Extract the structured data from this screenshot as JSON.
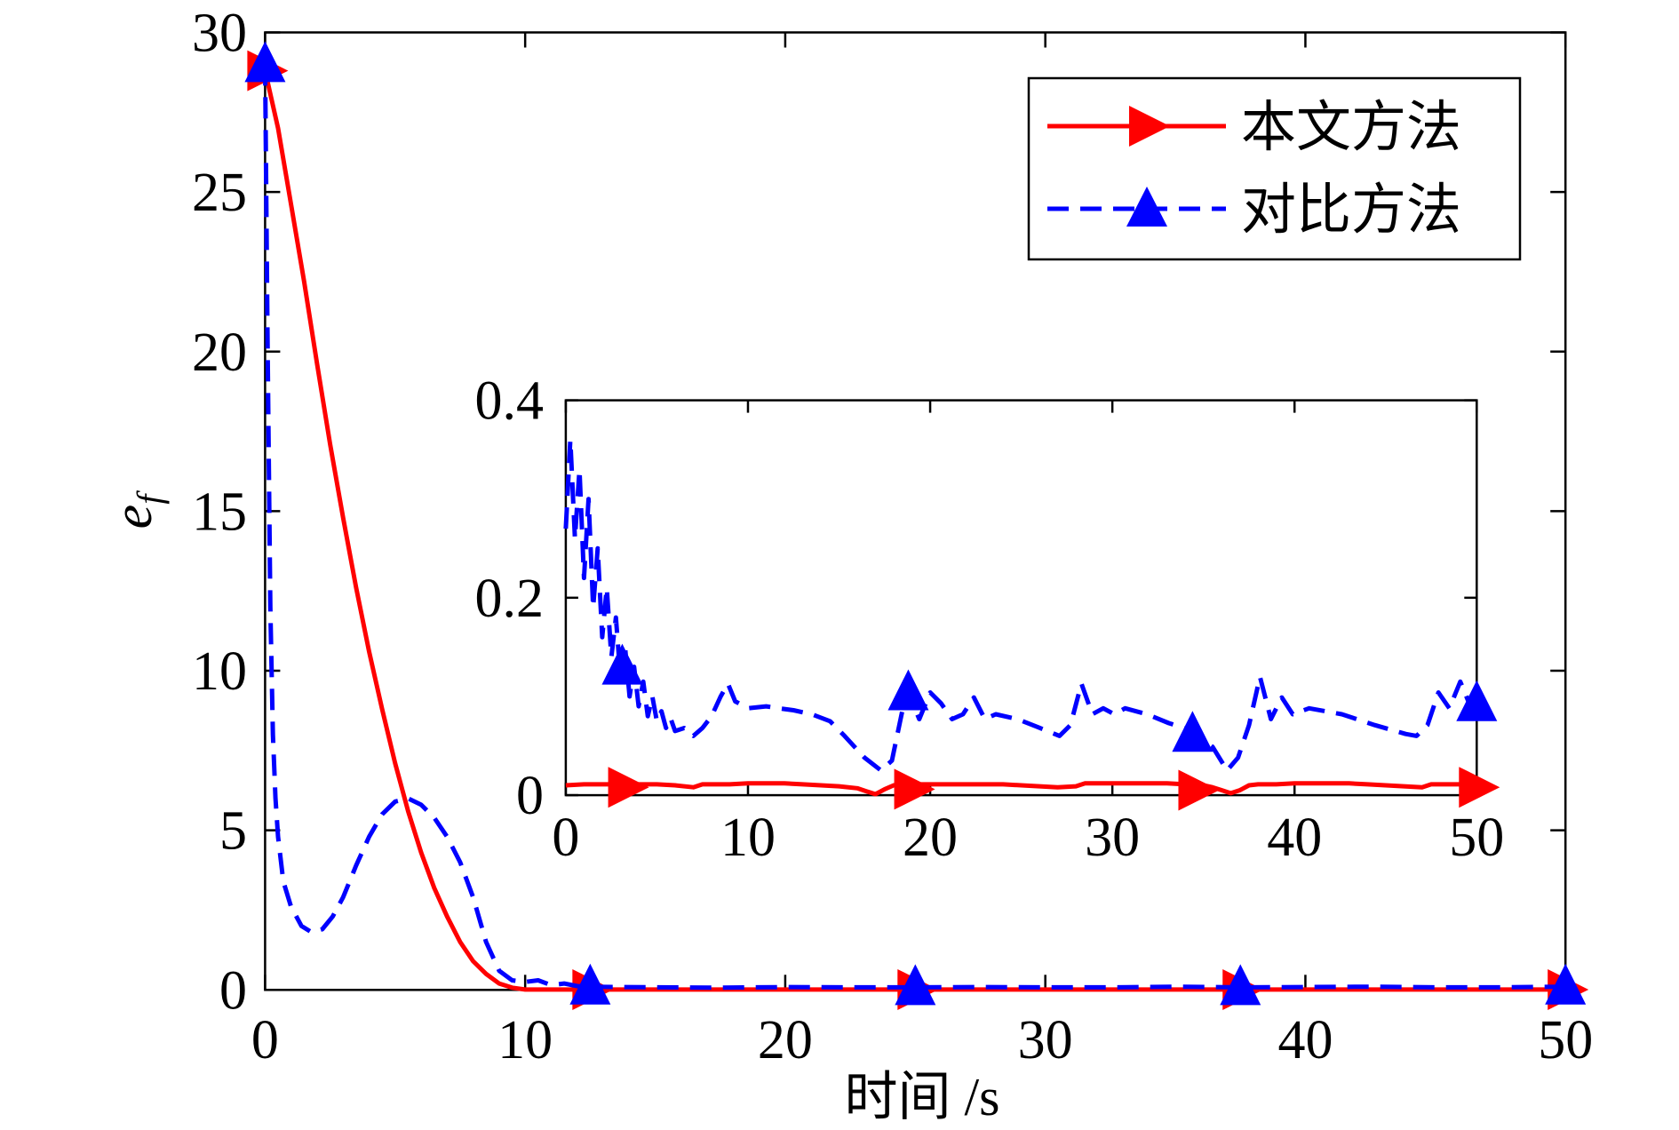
{
  "chart_data": [
    {
      "type": "line",
      "xlabel": "时间 /s",
      "ylabel": "e",
      "ylabel_subscript": "f",
      "xlim": [
        0,
        50
      ],
      "ylim": [
        0,
        30
      ],
      "xticks": [
        0,
        10,
        20,
        30,
        40,
        50
      ],
      "xtick_labels": [
        "0",
        "10",
        "20",
        "30",
        "40",
        "50"
      ],
      "yticks": [
        0,
        5,
        10,
        15,
        20,
        25,
        30
      ],
      "ytick_labels": [
        "0",
        "5",
        "10",
        "15",
        "20",
        "25",
        "30"
      ],
      "grid": false,
      "legend": {
        "position": "top-right"
      },
      "series": [
        {
          "name": "本文方法",
          "color": "#ff0000",
          "line_style": "solid",
          "marker": "triangle-right",
          "x": [
            0,
            0.5,
            1,
            1.5,
            2,
            2.5,
            3,
            3.5,
            4,
            4.5,
            5,
            5.5,
            6,
            6.5,
            7,
            7.5,
            8,
            8.5,
            9,
            9.5,
            10,
            12.5,
            15,
            20,
            25,
            30,
            35,
            40,
            45,
            50
          ],
          "y": [
            28.8,
            27.0,
            24.6,
            22.2,
            19.6,
            17.1,
            14.8,
            12.6,
            10.6,
            8.8,
            7.1,
            5.6,
            4.3,
            3.2,
            2.3,
            1.5,
            0.9,
            0.5,
            0.2,
            0.07,
            0.01,
            0.01,
            0.01,
            0.01,
            0.01,
            0.01,
            0.01,
            0.01,
            0.01,
            0.01
          ],
          "marker_x": [
            0,
            12.5,
            25,
            37.5,
            50
          ],
          "marker_y": [
            28.8,
            0.01,
            0.01,
            0.01,
            0.01
          ]
        },
        {
          "name": "对比方法",
          "color": "#0000ff",
          "line_style": "dashed",
          "marker": "triangle-up",
          "x": [
            0,
            0.1,
            0.2,
            0.3,
            0.4,
            0.5,
            0.7,
            1.0,
            1.4,
            1.8,
            2.2,
            2.6,
            3.0,
            3.5,
            4.0,
            4.5,
            5.0,
            5.5,
            6.0,
            6.5,
            7.0,
            7.5,
            8.0,
            8.5,
            9.0,
            9.5,
            10.0,
            10.5,
            11.0,
            11.5,
            12.0,
            12.5,
            15,
            17.5,
            20,
            22.5,
            25,
            27.5,
            30,
            32.5,
            35,
            37.5,
            40,
            42.5,
            45,
            47.5,
            50
          ],
          "y": [
            29.0,
            20.0,
            12.0,
            8.0,
            6.0,
            4.8,
            3.4,
            2.6,
            2.0,
            1.8,
            1.9,
            2.3,
            2.9,
            3.9,
            4.8,
            5.5,
            5.9,
            6.0,
            5.8,
            5.4,
            4.8,
            4.0,
            2.9,
            1.5,
            0.6,
            0.3,
            0.25,
            0.3,
            0.15,
            0.2,
            0.12,
            0.1,
            0.08,
            0.07,
            0.09,
            0.08,
            0.08,
            0.09,
            0.08,
            0.08,
            0.1,
            0.08,
            0.09,
            0.1,
            0.08,
            0.08,
            0.1
          ],
          "marker_x": [
            0,
            12.5,
            25,
            37.5,
            50
          ],
          "marker_y": [
            29.0,
            0.1,
            0.08,
            0.08,
            0.1
          ]
        }
      ]
    },
    {
      "type": "line",
      "xlim": [
        0,
        50
      ],
      "ylim": [
        0,
        0.4
      ],
      "xticks": [
        0,
        10,
        20,
        30,
        40,
        50
      ],
      "xtick_labels": [
        "0",
        "10",
        "20",
        "30",
        "40",
        "50"
      ],
      "yticks": [
        0,
        0.2,
        0.4
      ],
      "ytick_labels": [
        "0",
        "0.2",
        "0.4"
      ],
      "grid": false,
      "series": [
        {
          "color": "#ff0000",
          "line_style": "solid",
          "marker": "triangle-right",
          "x": [
            0,
            1,
            2,
            3,
            4,
            5,
            6,
            7,
            7.5,
            8,
            9,
            10,
            11,
            12,
            13,
            14,
            15,
            16,
            16.5,
            17,
            17.5,
            18,
            18.5,
            19,
            20,
            21,
            22,
            23,
            24,
            25,
            26,
            27,
            28,
            28.5,
            29,
            30,
            31,
            32,
            33,
            34,
            35,
            35.5,
            36,
            36.5,
            37,
            37.5,
            38,
            39,
            40,
            41,
            42,
            43,
            44,
            45,
            46,
            47,
            47.5,
            48,
            49,
            50
          ],
          "y": [
            0.01,
            0.011,
            0.011,
            0.011,
            0.011,
            0.011,
            0.01,
            0.008,
            0.011,
            0.011,
            0.011,
            0.012,
            0.012,
            0.012,
            0.011,
            0.01,
            0.009,
            0.007,
            0.004,
            0.001,
            0.006,
            0.01,
            0.011,
            0.011,
            0.011,
            0.011,
            0.011,
            0.011,
            0.011,
            0.01,
            0.009,
            0.008,
            0.009,
            0.012,
            0.012,
            0.012,
            0.012,
            0.012,
            0.012,
            0.011,
            0.01,
            0.008,
            0.005,
            0.002,
            0.005,
            0.01,
            0.011,
            0.011,
            0.012,
            0.012,
            0.012,
            0.012,
            0.011,
            0.01,
            0.009,
            0.008,
            0.011,
            0.011,
            0.011,
            0.011
          ],
          "marker_x": [
            3.3,
            19,
            34.6,
            50
          ],
          "marker_y": [
            0.008,
            0.006,
            0.005,
            0.008
          ]
        },
        {
          "color": "#0000ff",
          "line_style": "dashed",
          "marker": "triangle-up",
          "x": [
            0,
            0.25,
            0.5,
            0.75,
            1,
            1.25,
            1.5,
            1.75,
            2,
            2.25,
            2.5,
            2.75,
            3,
            3.25,
            3.5,
            3.75,
            4,
            4.25,
            4.5,
            4.75,
            5,
            5.25,
            5.5,
            5.75,
            6,
            6.5,
            7,
            7.5,
            8,
            8.5,
            8.9,
            9.3,
            10,
            11,
            11.7,
            12.5,
            13.5,
            14.5,
            15.3,
            16.4,
            17.3,
            17.9,
            18.5,
            18.8,
            19.4,
            20,
            20.6,
            21.2,
            21.8,
            22.4,
            23,
            23.6,
            24.8,
            25.9,
            27.1,
            27.7,
            28.3,
            28.9,
            29.5,
            30.1,
            30.7,
            31.9,
            33.1,
            34.3,
            35.5,
            36.3,
            36.9,
            37.5,
            38.1,
            38.7,
            39.3,
            39.9,
            40.8,
            42.6,
            44.4,
            46.1,
            46.7,
            47.3,
            47.9,
            48.5,
            49.1,
            49.7,
            50
          ],
          "y": [
            0.27,
            0.36,
            0.26,
            0.33,
            0.22,
            0.3,
            0.19,
            0.25,
            0.16,
            0.21,
            0.14,
            0.18,
            0.12,
            0.15,
            0.1,
            0.13,
            0.09,
            0.115,
            0.08,
            0.1,
            0.075,
            0.085,
            0.068,
            0.078,
            0.065,
            0.068,
            0.06,
            0.068,
            0.08,
            0.1,
            0.113,
            0.095,
            0.088,
            0.09,
            0.088,
            0.086,
            0.082,
            0.075,
            0.06,
            0.038,
            0.025,
            0.035,
            0.088,
            0.104,
            0.077,
            0.104,
            0.093,
            0.077,
            0.082,
            0.099,
            0.077,
            0.082,
            0.077,
            0.069,
            0.06,
            0.071,
            0.113,
            0.082,
            0.088,
            0.082,
            0.088,
            0.082,
            0.073,
            0.066,
            0.049,
            0.025,
            0.038,
            0.071,
            0.12,
            0.077,
            0.099,
            0.082,
            0.088,
            0.082,
            0.071,
            0.062,
            0.06,
            0.071,
            0.104,
            0.088,
            0.115,
            0.088,
            0.093
          ],
          "marker_x": [
            3.1,
            18.8,
            34.4,
            50
          ],
          "marker_y": [
            0.13,
            0.104,
            0.062,
            0.093
          ]
        }
      ]
    }
  ]
}
